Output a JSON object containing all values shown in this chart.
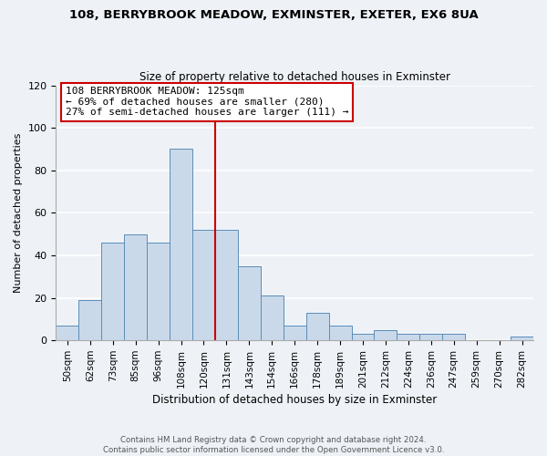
{
  "title": "108, BERRYBROOK MEADOW, EXMINSTER, EXETER, EX6 8UA",
  "subtitle": "Size of property relative to detached houses in Exminster",
  "xlabel": "Distribution of detached houses by size in Exminster",
  "ylabel": "Number of detached properties",
  "bar_labels": [
    "50sqm",
    "62sqm",
    "73sqm",
    "85sqm",
    "96sqm",
    "108sqm",
    "120sqm",
    "131sqm",
    "143sqm",
    "154sqm",
    "166sqm",
    "178sqm",
    "189sqm",
    "201sqm",
    "212sqm",
    "224sqm",
    "236sqm",
    "247sqm",
    "259sqm",
    "270sqm",
    "282sqm"
  ],
  "bar_values": [
    7,
    19,
    46,
    50,
    46,
    90,
    52,
    52,
    35,
    21,
    7,
    13,
    7,
    3,
    5,
    3,
    3,
    3,
    0,
    0,
    2
  ],
  "bar_color": "#c9d9ea",
  "bar_edge_color": "#5b8db8",
  "vline_color": "#cc0000",
  "annotation_line1": "108 BERRYBROOK MEADOW: 125sqm",
  "annotation_line2": "← 69% of detached houses are smaller (280)",
  "annotation_line3": "27% of semi-detached houses are larger (111) →",
  "annotation_box_color": "#ffffff",
  "annotation_box_edge": "#cc0000",
  "ylim": [
    0,
    120
  ],
  "yticks": [
    0,
    20,
    40,
    60,
    80,
    100,
    120
  ],
  "footer_text": "Contains HM Land Registry data © Crown copyright and database right 2024.\nContains public sector information licensed under the Open Government Licence v3.0.",
  "background_color": "#eef2f7",
  "grid_color": "#ffffff"
}
